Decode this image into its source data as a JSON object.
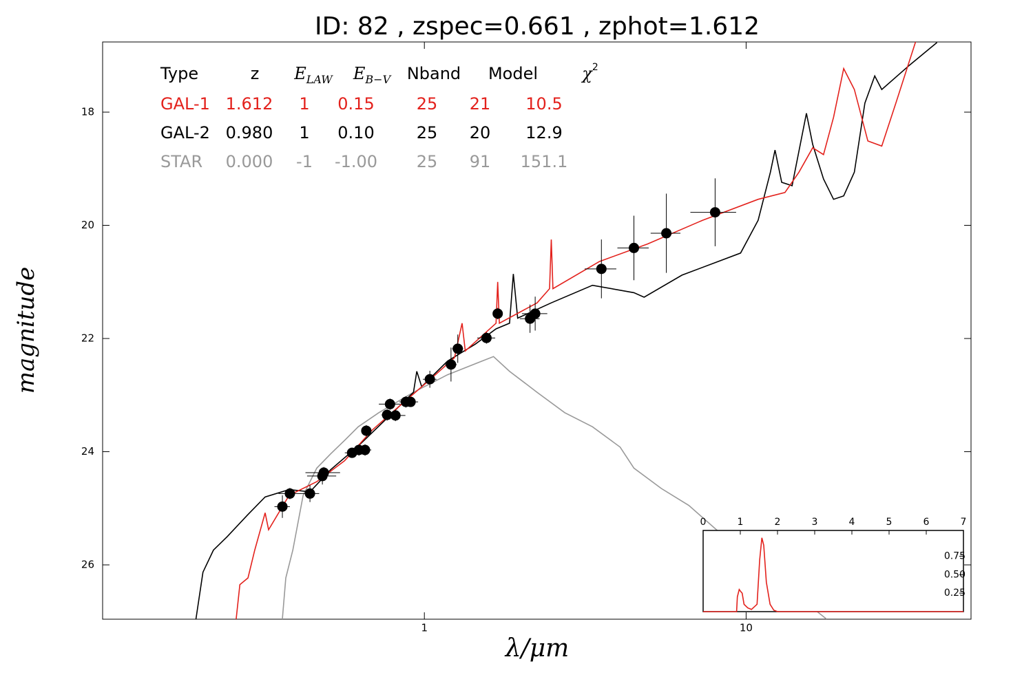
{
  "chart_data": {
    "type": "sed",
    "title": "ID:  82    , zspec=0.661 , zphot=1.612",
    "xlabel": "λ/μm",
    "ylabel": "magnitude",
    "xscale": "log",
    "xlim": [
      0.1,
      50
    ],
    "ylim": [
      26.96,
      16.76
    ],
    "xticks": [
      1,
      10
    ],
    "yticks": [
      18,
      20,
      22,
      24,
      26
    ],
    "table": {
      "columns": [
        {
          "text": "Type"
        },
        {
          "text": "z"
        },
        {
          "text": "E",
          "sub": "LAW"
        },
        {
          "text": "E",
          "sub": "B−V"
        },
        {
          "text": "Nband"
        },
        {
          "text": "Model"
        },
        {
          "text": "χ",
          "sup": "2"
        }
      ],
      "rows": [
        {
          "color": "#e3211c",
          "cells": [
            "GAL-1",
            "1.612",
            "1",
            "0.15",
            "25",
            "21",
            "10.5"
          ]
        },
        {
          "color": "#000000",
          "cells": [
            "GAL-2",
            "0.980",
            "1",
            "0.10",
            "25",
            "20",
            "12.9"
          ]
        },
        {
          "color": "#999999",
          "cells": [
            "STAR",
            "0.000",
            "-1",
            "-1.00",
            "25",
            "91",
            "151.1"
          ]
        }
      ]
    },
    "series": [
      {
        "color": "#999999",
        "x": [
          0.362,
          0.371,
          0.39,
          0.42,
          0.463,
          0.511,
          0.565,
          0.623,
          0.722,
          0.925,
          1.18,
          1.51,
          1.64,
          1.84,
          2.24,
          2.73,
          3.33,
          4.06,
          4.48,
          5.45,
          6.64,
          8.09,
          10.9,
          13.9,
          17.8
        ],
        "y": [
          26.96,
          26.23,
          25.74,
          24.77,
          24.29,
          24.04,
          23.8,
          23.56,
          23.31,
          22.95,
          22.64,
          22.4,
          22.32,
          22.58,
          22.95,
          23.31,
          23.56,
          23.92,
          24.29,
          24.65,
          24.95,
          25.38,
          25.99,
          26.47,
          26.96
        ]
      },
      {
        "color": "#000000",
        "x": [
          0.195,
          0.205,
          0.221,
          0.244,
          0.283,
          0.32,
          0.38,
          0.441,
          0.511,
          0.623,
          0.759,
          0.925,
          0.947,
          0.981,
          1.18,
          1.44,
          1.67,
          1.84,
          1.89,
          1.95,
          2.48,
          3.33,
          4.48,
          4.82,
          6.32,
          9.61,
          10.9,
          11.9,
          12.3,
          12.9,
          13.9,
          15.4,
          16.1,
          17.4,
          18.7,
          20.1,
          21.7,
          23.4,
          25.1,
          26.4,
          32.2,
          39.2
        ],
        "y": [
          26.96,
          26.13,
          25.74,
          25.5,
          25.11,
          24.8,
          24.67,
          24.71,
          24.32,
          23.9,
          23.43,
          22.95,
          22.58,
          22.85,
          22.4,
          22.1,
          21.83,
          21.73,
          20.86,
          21.64,
          21.37,
          21.06,
          21.19,
          21.27,
          20.88,
          20.49,
          19.91,
          19.06,
          18.67,
          19.24,
          19.3,
          18.02,
          18.57,
          19.18,
          19.54,
          19.48,
          19.06,
          17.84,
          17.36,
          17.6,
          17.17,
          16.77
        ]
      },
      {
        "color": "#e3211c",
        "x": [
          0.26,
          0.267,
          0.283,
          0.297,
          0.32,
          0.328,
          0.38,
          0.463,
          0.565,
          0.688,
          0.838,
          1.02,
          1.24,
          1.31,
          1.34,
          1.67,
          1.69,
          1.71,
          2.24,
          2.45,
          2.48,
          2.51,
          3.5,
          4.94,
          7.33,
          10.9,
          13.2,
          14.6,
          16.1,
          17.4,
          18.7,
          20.1,
          21.7,
          23.9,
          26.4,
          29.2,
          33.8
        ],
        "y": [
          26.96,
          26.35,
          26.23,
          25.74,
          25.08,
          25.38,
          24.77,
          24.53,
          24.16,
          23.62,
          23.19,
          22.77,
          22.34,
          21.73,
          22.22,
          21.73,
          21.0,
          21.73,
          21.37,
          21.12,
          20.25,
          21.12,
          20.64,
          20.33,
          19.91,
          19.54,
          19.42,
          19.06,
          18.63,
          18.75,
          18.09,
          17.23,
          17.6,
          18.51,
          18.6,
          17.84,
          16.72
        ]
      }
    ],
    "points": {
      "color": "#000000",
      "x": [
        0.362,
        0.382,
        0.441,
        0.482,
        0.487,
        0.596,
        0.626,
        0.654,
        0.66,
        0.766,
        0.782,
        0.813,
        0.876,
        0.906,
        1.04,
        1.21,
        1.27,
        1.56,
        1.69,
        2.13,
        2.21,
        3.55,
        4.48,
        5.65,
        8.01
      ],
      "y": [
        24.97,
        24.74,
        24.74,
        24.43,
        24.37,
        24.02,
        23.97,
        23.97,
        23.63,
        23.35,
        23.16,
        23.36,
        23.12,
        23.12,
        22.72,
        22.46,
        22.18,
        21.99,
        21.56,
        21.65,
        21.56,
        20.77,
        20.4,
        20.14,
        19.77
      ],
      "xerr": [
        0.02,
        0.03,
        0.03,
        0.05,
        0.06,
        0.03,
        0.04,
        0.03,
        0.02,
        0.03,
        0.06,
        0.06,
        0.04,
        0.05,
        0.05,
        0.05,
        0.05,
        0.1,
        0.05,
        0.15,
        0.2,
        0.4,
        0.5,
        0.6,
        1.3
      ],
      "yerr": [
        0.2,
        0.1,
        0.15,
        0.15,
        0.1,
        0.08,
        0.1,
        0.1,
        0.1,
        0.1,
        0.1,
        0.1,
        0.1,
        0.08,
        0.15,
        0.3,
        0.25,
        0.1,
        0.1,
        0.25,
        0.3,
        0.52,
        0.57,
        0.7,
        0.6
      ]
    },
    "inset": {
      "type": "line",
      "color": "#e3211c",
      "xlim": [
        0,
        7
      ],
      "ylim": [
        0,
        1.1
      ],
      "xticks": [
        0,
        1,
        2,
        3,
        4,
        5,
        6,
        7
      ],
      "yticks": [
        0.25,
        {
          "value": 0.5,
          "label": "0.50"
        },
        0.75
      ],
      "x": [
        0,
        0.9,
        0.92,
        0.97,
        1.0,
        1.05,
        1.1,
        1.2,
        1.3,
        1.45,
        1.52,
        1.58,
        1.63,
        1.7,
        1.8,
        1.9,
        2.0,
        7
      ],
      "y": [
        0,
        0,
        0.2,
        0.3,
        0.28,
        0.25,
        0.1,
        0.05,
        0.03,
        0.1,
        0.7,
        1.0,
        0.9,
        0.4,
        0.1,
        0.02,
        0,
        0
      ]
    }
  }
}
